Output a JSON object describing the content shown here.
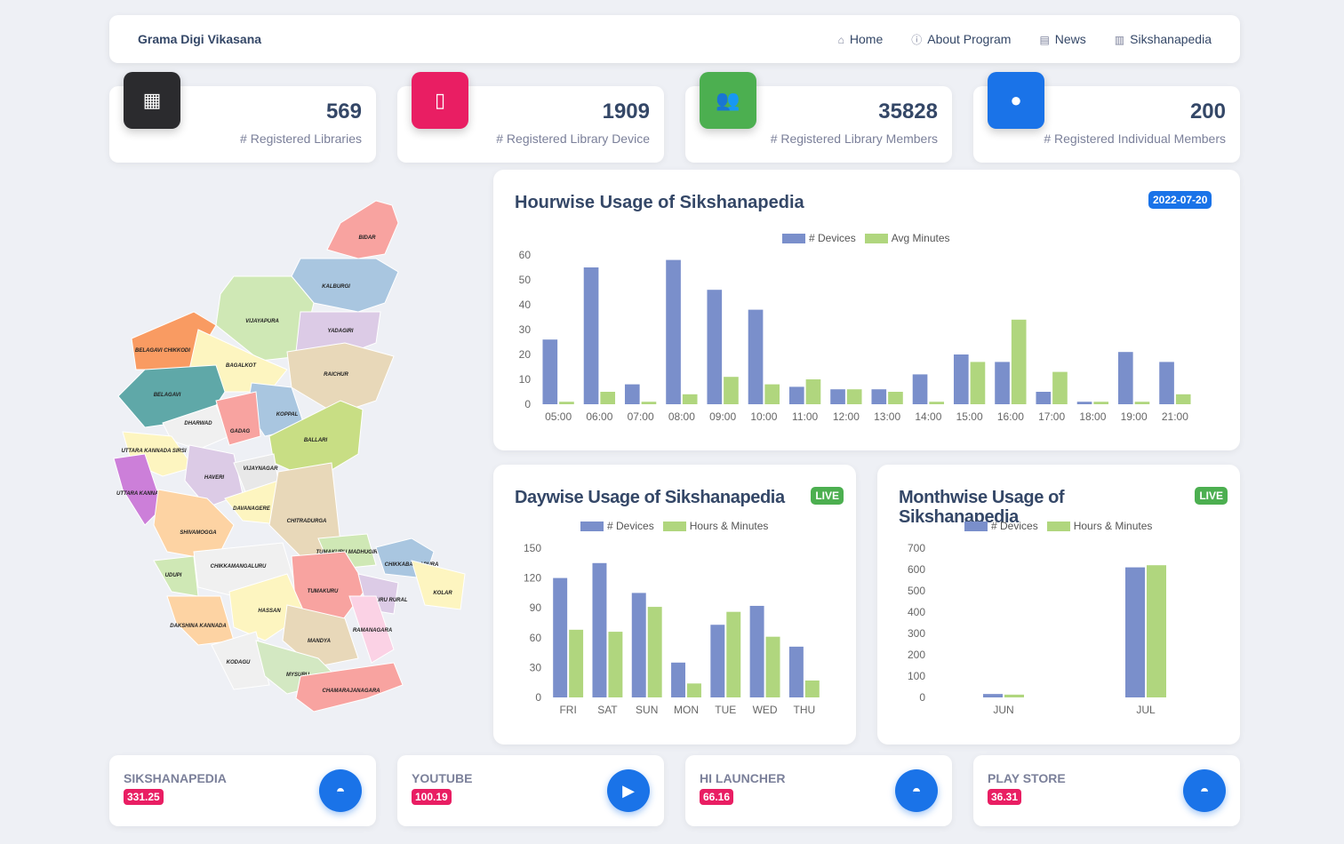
{
  "nav": {
    "brand": "Grama Digi Vikasana",
    "links": [
      {
        "label": "Home",
        "icon": "home-icon"
      },
      {
        "label": "About Program",
        "icon": "info-icon"
      },
      {
        "label": "News",
        "icon": "news-icon"
      },
      {
        "label": "Sikshanapedia",
        "icon": "chart-icon"
      }
    ]
  },
  "stats": [
    {
      "value": "569",
      "label": "# Registered Libraries",
      "icon": "building-icon",
      "color": "#2b2b2e"
    },
    {
      "value": "1909",
      "label": "# Registered Library Device",
      "icon": "phone-icon",
      "color": "#e91e63"
    },
    {
      "value": "35828",
      "label": "# Registered Library Members",
      "icon": "group-icon",
      "color": "#4caf50"
    },
    {
      "value": "200",
      "label": "# Registered Individual Members",
      "icon": "person-icon",
      "color": "#1a73e8"
    }
  ],
  "map": {
    "districts": [
      "BIDAR",
      "KALBURGI",
      "VIJAYAPURA",
      "YADAGIRI",
      "BELAGAVI CHIKKODI",
      "BAGALKOT",
      "RAICHUR",
      "BELAGAVI",
      "KOPPAL",
      "DHARWAD",
      "GADAG",
      "BALLARI",
      "UTTARA KANNADA SIRSI",
      "HAVERI",
      "VIJAYNAGAR",
      "UTTARA KANNADA",
      "DAVANAGERE",
      "CHITRADURGA",
      "SHIVAMOGGA",
      "TUMAKURU MADHUGIRI",
      "CHIKKABALLAPURA",
      "UDUPI",
      "CHIKKAMANGALURU",
      "TUMAKURU",
      "BENGALURU RURAL",
      "KOLAR",
      "HASSAN",
      "DAKSHINA KANNADA",
      "MANDYA",
      "RAMANAGARA",
      "KODAGU",
      "MYSURU",
      "CHAMARAJANAGARA"
    ]
  },
  "chart_data": [
    {
      "type": "bar",
      "title": "Hourwise Usage of Sikshanapedia",
      "badge": "2022-07-20",
      "badge_color": "#1a73e8",
      "categories": [
        "05:00",
        "06:00",
        "07:00",
        "08:00",
        "09:00",
        "10:00",
        "11:00",
        "12:00",
        "13:00",
        "14:00",
        "15:00",
        "16:00",
        "17:00",
        "18:00",
        "19:00",
        "21:00"
      ],
      "series": [
        {
          "name": "# Devices",
          "color": "#7a8fcb",
          "values": [
            26,
            55,
            8,
            58,
            46,
            38,
            7,
            6,
            6,
            12,
            20,
            17,
            5,
            1,
            21,
            17
          ]
        },
        {
          "name": "Avg Minutes",
          "color": "#b0d67e",
          "values": [
            1,
            5,
            1,
            4,
            11,
            8,
            10,
            6,
            5,
            1,
            17,
            34,
            13,
            1,
            1,
            4
          ]
        }
      ],
      "ylim": [
        0,
        60
      ],
      "yticks": [
        0,
        10,
        20,
        30,
        40,
        50,
        60
      ]
    },
    {
      "type": "bar",
      "title": "Daywise Usage of Sikshanapedia",
      "badge": "LIVE",
      "badge_color": "#4caf50",
      "categories": [
        "FRI",
        "SAT",
        "SUN",
        "MON",
        "TUE",
        "WED",
        "THU"
      ],
      "series": [
        {
          "name": "# Devices",
          "color": "#7a8fcb",
          "values": [
            120,
            135,
            105,
            35,
            73,
            92,
            51
          ]
        },
        {
          "name": "Hours & Minutes",
          "color": "#b0d67e",
          "values": [
            68,
            66,
            91,
            14,
            86,
            61,
            17
          ]
        }
      ],
      "ylim": [
        0,
        150
      ],
      "yticks": [
        0,
        30,
        60,
        90,
        120,
        150
      ]
    },
    {
      "type": "bar",
      "title": "Monthwise Usage of Sikshanapedia",
      "badge": "LIVE",
      "badge_color": "#4caf50",
      "categories": [
        "JUN",
        "JUL"
      ],
      "series": [
        {
          "name": "# Devices",
          "color": "#7a8fcb",
          "values": [
            16,
            610
          ]
        },
        {
          "name": "Hours & Minutes",
          "color": "#b0d67e",
          "values": [
            13,
            620
          ]
        }
      ],
      "ylim": [
        0,
        700
      ],
      "yticks": [
        0,
        100,
        200,
        300,
        400,
        500,
        600,
        700
      ]
    }
  ],
  "apps": [
    {
      "name": "SIKSHANAPEDIA",
      "value": "331.25",
      "icon": "android-icon"
    },
    {
      "name": "YOUTUBE",
      "value": "100.19",
      "icon": "youtube-icon"
    },
    {
      "name": "HI LAUNCHER",
      "value": "66.16",
      "icon": "android-icon"
    },
    {
      "name": "PLAY STORE",
      "value": "36.31",
      "icon": "android-icon"
    }
  ]
}
